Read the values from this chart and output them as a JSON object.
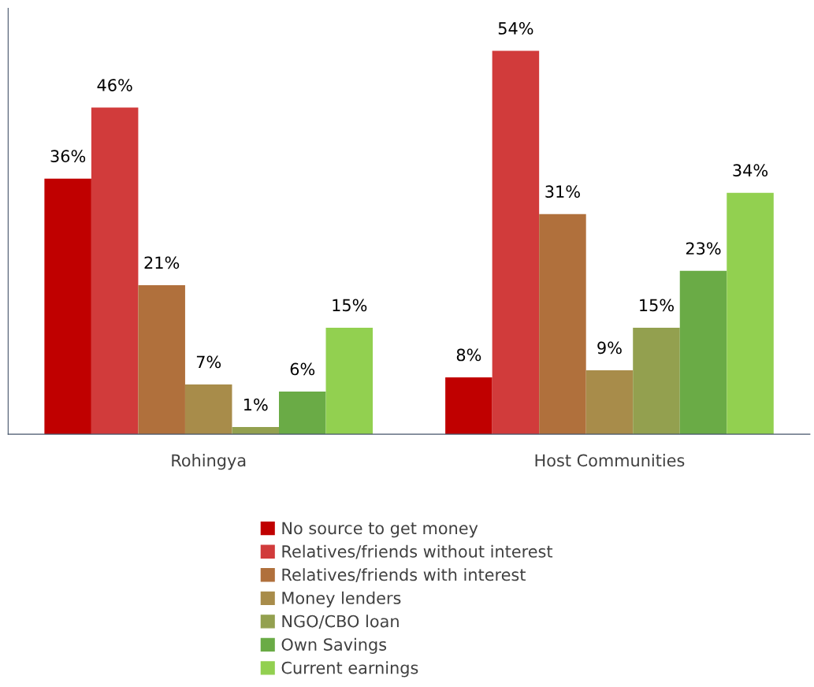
{
  "chart_data": {
    "type": "bar",
    "categories": [
      "Rohingya",
      "Host Communities"
    ],
    "series": [
      {
        "name": "No source to get money",
        "color": "#c00000",
        "values": [
          36,
          8
        ],
        "value_labels": [
          "36%",
          "8%"
        ]
      },
      {
        "name": "Relatives/friends without interest",
        "color": "#d13b3b",
        "values": [
          46,
          54
        ],
        "value_labels": [
          "46%",
          "54%"
        ]
      },
      {
        "name": "Relatives/friends with interest",
        "color": "#b0703c",
        "values": [
          21,
          31
        ],
        "value_labels": [
          "21%",
          "31%"
        ]
      },
      {
        "name": "Money lenders",
        "color": "#a88c4a",
        "values": [
          7,
          9
        ],
        "value_labels": [
          "7%",
          "9%"
        ]
      },
      {
        "name": "NGO/CBO loan",
        "color": "#93a04f",
        "values": [
          1,
          15
        ],
        "value_labels": [
          "1%",
          "15%"
        ]
      },
      {
        "name": "Own Savings",
        "color": "#6aab46",
        "values": [
          6,
          23
        ],
        "value_labels": [
          "6%",
          "23%"
        ]
      },
      {
        "name": "Current earnings",
        "color": "#92d050",
        "values": [
          15,
          34
        ],
        "value_labels": [
          "15%",
          "34%"
        ]
      }
    ],
    "ylim": [
      0,
      60
    ],
    "tick_labels": "x",
    "grid": false,
    "legend": "bottom"
  }
}
